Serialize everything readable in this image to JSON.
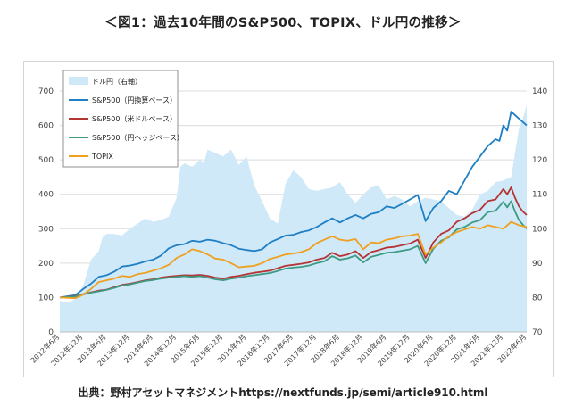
{
  "header": {
    "title": "＜図1：過去10年間のS&P500、TOPIX、ドル円の推移＞"
  },
  "footer": {
    "source": "出典：野村アセットマネジメントhttps://nextfunds.jp/semi/article910.html"
  },
  "chart_data": {
    "type": "line",
    "title": "",
    "xlabel": "",
    "ylabel": "",
    "ylim": [
      0,
      700
    ],
    "y2lim": [
      70,
      140
    ],
    "yticks": [
      0,
      100,
      200,
      300,
      400,
      500,
      600,
      700
    ],
    "y2ticks": [
      70,
      80,
      90,
      100,
      110,
      120,
      130,
      140
    ],
    "x_range": [
      0,
      120
    ],
    "xtick_labels": [
      "2012年6月",
      "2012年12月",
      "2013年6月",
      "2013年12月",
      "2014年6月",
      "2014年12月",
      "2015年6月",
      "2015年12月",
      "2016年6月",
      "2016年12月",
      "2017年6月",
      "2017年12月",
      "2018年6月",
      "2018年12月",
      "2019年6月",
      "2019年12月",
      "2020年6月",
      "2020年12月",
      "2021年6月",
      "2021年12月",
      "2022年6月"
    ],
    "legend_position": "top-left",
    "grid": true,
    "series": [
      {
        "name": "ドル円（右軸）",
        "type": "area",
        "axis": "right",
        "color": "#cfe9f9",
        "points": [
          [
            0,
            79
          ],
          [
            2,
            78.5
          ],
          [
            4,
            79.5
          ],
          [
            6,
            83.5
          ],
          [
            8,
            91
          ],
          [
            10,
            93.5
          ],
          [
            11,
            97.5
          ],
          [
            12,
            98.5
          ],
          [
            14,
            98.5
          ],
          [
            16,
            98
          ],
          [
            18,
            100
          ],
          [
            20,
            101.5
          ],
          [
            22,
            103
          ],
          [
            24,
            102
          ],
          [
            26,
            102.5
          ],
          [
            28,
            103.5
          ],
          [
            30,
            109
          ],
          [
            31,
            118
          ],
          [
            32,
            119
          ],
          [
            34,
            118
          ],
          [
            36,
            120
          ],
          [
            37,
            119
          ],
          [
            38,
            123
          ],
          [
            40,
            122
          ],
          [
            42,
            121
          ],
          [
            44,
            123
          ],
          [
            46,
            118.5
          ],
          [
            48,
            121
          ],
          [
            50,
            112.5
          ],
          [
            52,
            108
          ],
          [
            54,
            103
          ],
          [
            56,
            101.5
          ],
          [
            58,
            113
          ],
          [
            60,
            117
          ],
          [
            62,
            115
          ],
          [
            64,
            111.5
          ],
          [
            66,
            111
          ],
          [
            68,
            111.5
          ],
          [
            70,
            112
          ],
          [
            72,
            113.5
          ],
          [
            74,
            110
          ],
          [
            76,
            107.5
          ],
          [
            78,
            110
          ],
          [
            80,
            112
          ],
          [
            82,
            112.5
          ],
          [
            84,
            108.5
          ],
          [
            86,
            109.5
          ],
          [
            88,
            108.5
          ],
          [
            90,
            106.5
          ],
          [
            92,
            108
          ],
          [
            94,
            109
          ],
          [
            96,
            108.5
          ],
          [
            98,
            108
          ],
          [
            100,
            106
          ],
          [
            102,
            104
          ],
          [
            104,
            103.5
          ],
          [
            106,
            105.5
          ],
          [
            108,
            110
          ],
          [
            110,
            111
          ],
          [
            112,
            113.5
          ],
          [
            114,
            114
          ],
          [
            116,
            115
          ],
          [
            117,
            122
          ],
          [
            118,
            129
          ],
          [
            119,
            132
          ],
          [
            120,
            136
          ]
        ]
      },
      {
        "name": "S&P500（円換算ベース）",
        "type": "line",
        "axis": "left",
        "color": "#1f7fc4",
        "points": [
          [
            0,
            100
          ],
          [
            4,
            107
          ],
          [
            6,
            125
          ],
          [
            8,
            140
          ],
          [
            10,
            160
          ],
          [
            12,
            165
          ],
          [
            14,
            175
          ],
          [
            16,
            190
          ],
          [
            18,
            193
          ],
          [
            20,
            198
          ],
          [
            22,
            205
          ],
          [
            24,
            210
          ],
          [
            26,
            222
          ],
          [
            28,
            243
          ],
          [
            30,
            252
          ],
          [
            32,
            255
          ],
          [
            34,
            265
          ],
          [
            36,
            262
          ],
          [
            38,
            268
          ],
          [
            40,
            265
          ],
          [
            42,
            258
          ],
          [
            44,
            252
          ],
          [
            46,
            242
          ],
          [
            48,
            238
          ],
          [
            50,
            235
          ],
          [
            52,
            240
          ],
          [
            54,
            260
          ],
          [
            56,
            270
          ],
          [
            58,
            280
          ],
          [
            60,
            282
          ],
          [
            62,
            290
          ],
          [
            64,
            295
          ],
          [
            66,
            305
          ],
          [
            68,
            318
          ],
          [
            70,
            330
          ],
          [
            72,
            318
          ],
          [
            74,
            330
          ],
          [
            76,
            340
          ],
          [
            78,
            330
          ],
          [
            80,
            343
          ],
          [
            82,
            348
          ],
          [
            84,
            365
          ],
          [
            86,
            360
          ],
          [
            88,
            372
          ],
          [
            90,
            385
          ],
          [
            92,
            398
          ],
          [
            94,
            322
          ],
          [
            96,
            360
          ],
          [
            98,
            380
          ],
          [
            100,
            410
          ],
          [
            102,
            400
          ],
          [
            104,
            440
          ],
          [
            106,
            480
          ],
          [
            108,
            510
          ],
          [
            110,
            540
          ],
          [
            112,
            560
          ],
          [
            113,
            555
          ],
          [
            114,
            600
          ],
          [
            115,
            585
          ],
          [
            116,
            640
          ],
          [
            118,
            620
          ],
          [
            120,
            600
          ]
        ]
      },
      {
        "name": "S&P500（米ドルベース）",
        "type": "line",
        "axis": "left",
        "color": "#b53434",
        "points": [
          [
            0,
            100
          ],
          [
            4,
            104
          ],
          [
            6,
            110
          ],
          [
            8,
            115
          ],
          [
            10,
            120
          ],
          [
            12,
            123
          ],
          [
            14,
            130
          ],
          [
            16,
            137
          ],
          [
            18,
            140
          ],
          [
            20,
            145
          ],
          [
            22,
            150
          ],
          [
            24,
            153
          ],
          [
            26,
            158
          ],
          [
            28,
            161
          ],
          [
            30,
            163
          ],
          [
            32,
            165
          ],
          [
            34,
            164
          ],
          [
            36,
            166
          ],
          [
            38,
            163
          ],
          [
            40,
            158
          ],
          [
            42,
            155
          ],
          [
            44,
            160
          ],
          [
            46,
            163
          ],
          [
            48,
            168
          ],
          [
            50,
            172
          ],
          [
            52,
            175
          ],
          [
            54,
            178
          ],
          [
            56,
            185
          ],
          [
            58,
            192
          ],
          [
            60,
            195
          ],
          [
            62,
            198
          ],
          [
            64,
            202
          ],
          [
            66,
            210
          ],
          [
            68,
            215
          ],
          [
            70,
            230
          ],
          [
            72,
            220
          ],
          [
            74,
            225
          ],
          [
            76,
            235
          ],
          [
            78,
            215
          ],
          [
            80,
            232
          ],
          [
            82,
            238
          ],
          [
            84,
            245
          ],
          [
            86,
            247
          ],
          [
            88,
            252
          ],
          [
            90,
            257
          ],
          [
            92,
            268
          ],
          [
            94,
            215
          ],
          [
            96,
            260
          ],
          [
            98,
            285
          ],
          [
            100,
            295
          ],
          [
            102,
            320
          ],
          [
            104,
            330
          ],
          [
            106,
            345
          ],
          [
            108,
            355
          ],
          [
            110,
            380
          ],
          [
            112,
            385
          ],
          [
            113,
            400
          ],
          [
            114,
            415
          ],
          [
            115,
            400
          ],
          [
            116,
            420
          ],
          [
            117,
            390
          ],
          [
            118,
            365
          ],
          [
            119,
            350
          ],
          [
            120,
            340
          ]
        ]
      },
      {
        "name": "S&P500（円ヘッジベース）",
        "type": "line",
        "axis": "left",
        "color": "#3e9a82",
        "points": [
          [
            0,
            100
          ],
          [
            4,
            103
          ],
          [
            6,
            109
          ],
          [
            8,
            114
          ],
          [
            10,
            118
          ],
          [
            12,
            122
          ],
          [
            14,
            128
          ],
          [
            16,
            135
          ],
          [
            18,
            138
          ],
          [
            20,
            143
          ],
          [
            22,
            148
          ],
          [
            24,
            151
          ],
          [
            26,
            155
          ],
          [
            28,
            158
          ],
          [
            30,
            160
          ],
          [
            32,
            162
          ],
          [
            34,
            160
          ],
          [
            36,
            162
          ],
          [
            38,
            158
          ],
          [
            40,
            153
          ],
          [
            42,
            150
          ],
          [
            44,
            155
          ],
          [
            46,
            158
          ],
          [
            48,
            162
          ],
          [
            50,
            165
          ],
          [
            52,
            168
          ],
          [
            54,
            171
          ],
          [
            56,
            177
          ],
          [
            58,
            184
          ],
          [
            60,
            187
          ],
          [
            62,
            189
          ],
          [
            64,
            193
          ],
          [
            66,
            200
          ],
          [
            68,
            205
          ],
          [
            70,
            220
          ],
          [
            72,
            210
          ],
          [
            74,
            214
          ],
          [
            76,
            222
          ],
          [
            78,
            202
          ],
          [
            80,
            218
          ],
          [
            82,
            224
          ],
          [
            84,
            230
          ],
          [
            86,
            232
          ],
          [
            88,
            236
          ],
          [
            90,
            240
          ],
          [
            92,
            250
          ],
          [
            94,
            200
          ],
          [
            96,
            242
          ],
          [
            98,
            265
          ],
          [
            100,
            275
          ],
          [
            102,
            298
          ],
          [
            104,
            305
          ],
          [
            106,
            318
          ],
          [
            108,
            325
          ],
          [
            110,
            348
          ],
          [
            112,
            352
          ],
          [
            113,
            365
          ],
          [
            114,
            378
          ],
          [
            115,
            362
          ],
          [
            116,
            380
          ],
          [
            117,
            350
          ],
          [
            118,
            325
          ],
          [
            119,
            312
          ],
          [
            120,
            300
          ]
        ]
      },
      {
        "name": "TOPIX",
        "type": "line",
        "axis": "left",
        "color": "#f0a020",
        "points": [
          [
            0,
            100
          ],
          [
            4,
            98
          ],
          [
            6,
            108
          ],
          [
            8,
            125
          ],
          [
            10,
            145
          ],
          [
            12,
            150
          ],
          [
            14,
            155
          ],
          [
            16,
            163
          ],
          [
            18,
            160
          ],
          [
            20,
            168
          ],
          [
            22,
            172
          ],
          [
            24,
            178
          ],
          [
            26,
            185
          ],
          [
            28,
            195
          ],
          [
            30,
            215
          ],
          [
            32,
            225
          ],
          [
            34,
            240
          ],
          [
            36,
            235
          ],
          [
            38,
            225
          ],
          [
            40,
            213
          ],
          [
            42,
            210
          ],
          [
            44,
            200
          ],
          [
            46,
            188
          ],
          [
            48,
            190
          ],
          [
            50,
            192
          ],
          [
            52,
            200
          ],
          [
            54,
            212
          ],
          [
            56,
            218
          ],
          [
            58,
            225
          ],
          [
            60,
            228
          ],
          [
            62,
            232
          ],
          [
            64,
            240
          ],
          [
            66,
            258
          ],
          [
            68,
            268
          ],
          [
            70,
            278
          ],
          [
            72,
            268
          ],
          [
            74,
            265
          ],
          [
            76,
            270
          ],
          [
            78,
            240
          ],
          [
            80,
            260
          ],
          [
            82,
            258
          ],
          [
            84,
            268
          ],
          [
            86,
            272
          ],
          [
            88,
            278
          ],
          [
            90,
            280
          ],
          [
            92,
            285
          ],
          [
            94,
            225
          ],
          [
            96,
            245
          ],
          [
            98,
            260
          ],
          [
            100,
            278
          ],
          [
            102,
            290
          ],
          [
            104,
            298
          ],
          [
            106,
            305
          ],
          [
            108,
            300
          ],
          [
            110,
            310
          ],
          [
            112,
            305
          ],
          [
            114,
            300
          ],
          [
            115,
            310
          ],
          [
            116,
            320
          ],
          [
            118,
            310
          ],
          [
            120,
            305
          ]
        ]
      }
    ]
  }
}
